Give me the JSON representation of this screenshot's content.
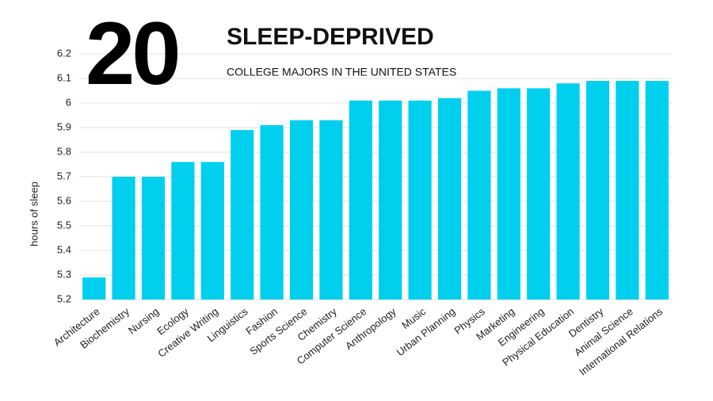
{
  "chart_data": {
    "type": "bar",
    "headline_number": "20",
    "title": "SLEEP-DEPRIVED",
    "subtitle": "COLLEGE MAJORS IN THE UNITED STATES",
    "y_label": "hours of sleep",
    "categories": [
      "Architecture",
      "Biochemistry",
      "Nursing",
      "Ecology",
      "Creative Writing",
      "Linguistics",
      "Fashion",
      "Sports Science",
      "Chemistry",
      "Computer Science",
      "Anthropology",
      "Music",
      "Urban Planning",
      "Physics",
      "Marketing",
      "Engineering",
      "Physical Education",
      "Dentistry",
      "Animal Science",
      "International Relations"
    ],
    "values": [
      5.29,
      5.7,
      5.7,
      5.76,
      5.76,
      5.89,
      5.91,
      5.93,
      5.93,
      6.01,
      6.01,
      6.01,
      6.02,
      6.05,
      6.06,
      6.06,
      6.08,
      6.09,
      6.09,
      6.09
    ],
    "color": "#00cfee",
    "ylim": [
      5.2,
      6.2
    ],
    "yticks": [
      5.2,
      5.3,
      5.4,
      5.5,
      5.6,
      5.7,
      5.8,
      5.9,
      6,
      6.1,
      6.2
    ],
    "grid": true
  }
}
